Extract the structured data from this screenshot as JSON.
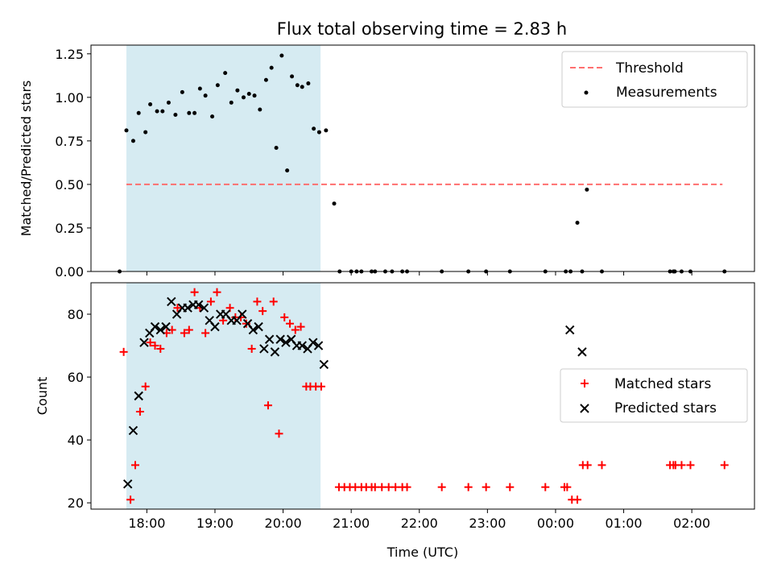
{
  "chart_data": {
    "title": "Flux total observing time = 2.83 h",
    "xlabel": "Time (UTC)",
    "x_ticks": [
      "18:00",
      "19:00",
      "20:00",
      "21:00",
      "22:00",
      "23:00",
      "00:00",
      "01:00",
      "02:00"
    ],
    "x_range_hours": [
      17.18,
      26.92
    ],
    "shaded_span_hours": [
      17.7,
      20.55
    ],
    "colors": {
      "shade": "#add8e6",
      "threshold": "#ff6f6f",
      "matched": "#ff0000",
      "predicted": "#000000",
      "measurement": "#000000"
    },
    "top": {
      "type": "scatter",
      "ylabel": "Matched/Predicted stars",
      "ylim": [
        0,
        1.3
      ],
      "y_ticks": [
        "0.00",
        "0.25",
        "0.50",
        "0.75",
        "1.00",
        "1.25"
      ],
      "legend": [
        "Threshold",
        "Measurements"
      ],
      "legend_position": "top-right",
      "threshold": {
        "value": 0.5,
        "x_start": 17.7,
        "x_end": 26.45
      },
      "measurements": {
        "x": [
          17.6,
          17.7,
          17.8,
          17.88,
          17.98,
          18.05,
          18.15,
          18.23,
          18.32,
          18.42,
          18.52,
          18.62,
          18.7,
          18.78,
          18.86,
          18.96,
          19.04,
          19.15,
          19.24,
          19.33,
          19.42,
          19.5,
          19.58,
          19.66,
          19.75,
          19.83,
          19.9,
          19.98,
          20.06,
          20.13,
          20.21,
          20.28,
          20.37,
          20.45,
          20.53,
          20.63,
          20.75,
          20.83,
          21.0,
          21.08,
          21.15,
          21.3,
          21.35,
          21.5,
          21.6,
          21.75,
          21.82,
          22.33,
          22.72,
          22.98,
          23.33,
          23.85,
          24.15,
          24.22,
          24.32,
          24.39,
          24.46,
          24.68,
          25.68,
          25.73,
          25.75,
          25.85,
          25.98,
          26.48
        ],
        "y": [
          0.0,
          0.81,
          0.75,
          0.91,
          0.8,
          0.96,
          0.92,
          0.92,
          0.97,
          0.9,
          1.03,
          0.91,
          0.91,
          1.05,
          1.01,
          0.89,
          1.07,
          1.14,
          0.97,
          1.04,
          1.0,
          1.02,
          1.01,
          0.93,
          1.1,
          1.17,
          0.71,
          1.24,
          0.58,
          1.12,
          1.07,
          1.06,
          1.08,
          0.82,
          0.8,
          0.81,
          0.39,
          0.0,
          0.0,
          0.0,
          0.0,
          0.0,
          0.0,
          0.0,
          0.0,
          0.0,
          0.0,
          0.0,
          0.0,
          0.0,
          0.0,
          0.0,
          0.0,
          0.0,
          0.28,
          0.0,
          0.47,
          0.0,
          0.0,
          0.0,
          0.0,
          0.0,
          0.0,
          0.0
        ]
      }
    },
    "bottom": {
      "type": "scatter",
      "ylabel": "Count",
      "ylim": [
        18,
        90
      ],
      "y_ticks": [
        "20",
        "40",
        "60",
        "80"
      ],
      "legend": [
        "Matched stars",
        "Predicted stars"
      ],
      "legend_position": "center-right",
      "matched": {
        "x": [
          17.66,
          17.76,
          17.83,
          17.9,
          17.98,
          18.05,
          18.12,
          18.2,
          18.29,
          18.37,
          18.45,
          18.55,
          18.62,
          18.7,
          18.78,
          18.86,
          18.94,
          19.03,
          19.12,
          19.22,
          19.3,
          19.38,
          19.46,
          19.54,
          19.62,
          19.7,
          19.78,
          19.86,
          19.94,
          20.02,
          20.1,
          20.18,
          20.26,
          20.34,
          20.4,
          20.48,
          20.56,
          20.82,
          20.9,
          20.98,
          21.06,
          21.15,
          21.22,
          21.3,
          21.35,
          21.45,
          21.55,
          21.65,
          21.75,
          21.82,
          22.33,
          22.72,
          22.98,
          23.33,
          23.85,
          24.13,
          24.17,
          24.24,
          24.32,
          24.4,
          24.47,
          24.68,
          25.68,
          25.73,
          25.76,
          25.85,
          25.98,
          26.48
        ],
        "y": [
          68,
          21,
          32,
          49,
          57,
          71,
          70,
          69,
          74,
          75,
          82,
          74,
          75,
          87,
          82,
          74,
          84,
          87,
          78,
          82,
          79,
          79,
          77,
          69,
          84,
          81,
          51,
          84,
          42,
          79,
          77,
          75,
          76,
          57,
          57,
          57,
          57,
          25,
          25,
          25,
          25,
          25,
          25,
          25,
          25,
          25,
          25,
          25,
          25,
          25,
          25,
          25,
          25,
          25,
          25,
          25,
          25,
          21,
          21,
          32,
          32,
          32,
          32,
          32,
          32,
          32,
          32,
          32
        ]
      },
      "predicted": {
        "x": [
          17.72,
          17.8,
          17.88,
          17.96,
          18.04,
          18.12,
          18.2,
          18.28,
          18.36,
          18.44,
          18.52,
          18.6,
          18.68,
          18.76,
          18.84,
          18.92,
          19.0,
          19.08,
          19.16,
          19.24,
          19.32,
          19.4,
          19.48,
          19.56,
          19.64,
          19.72,
          19.8,
          19.88,
          19.96,
          20.04,
          20.12,
          20.2,
          20.28,
          20.36,
          20.44,
          20.52,
          20.6,
          24.21,
          24.39
        ],
        "y": [
          26,
          43,
          54,
          71,
          74,
          76,
          75,
          76,
          84,
          80,
          82,
          82,
          83,
          83,
          82,
          78,
          76,
          80,
          80,
          78,
          78,
          80,
          77,
          75,
          76,
          69,
          72,
          68,
          72,
          71,
          72,
          70,
          70,
          69,
          71,
          70,
          64,
          75,
          68
        ]
      }
    }
  }
}
